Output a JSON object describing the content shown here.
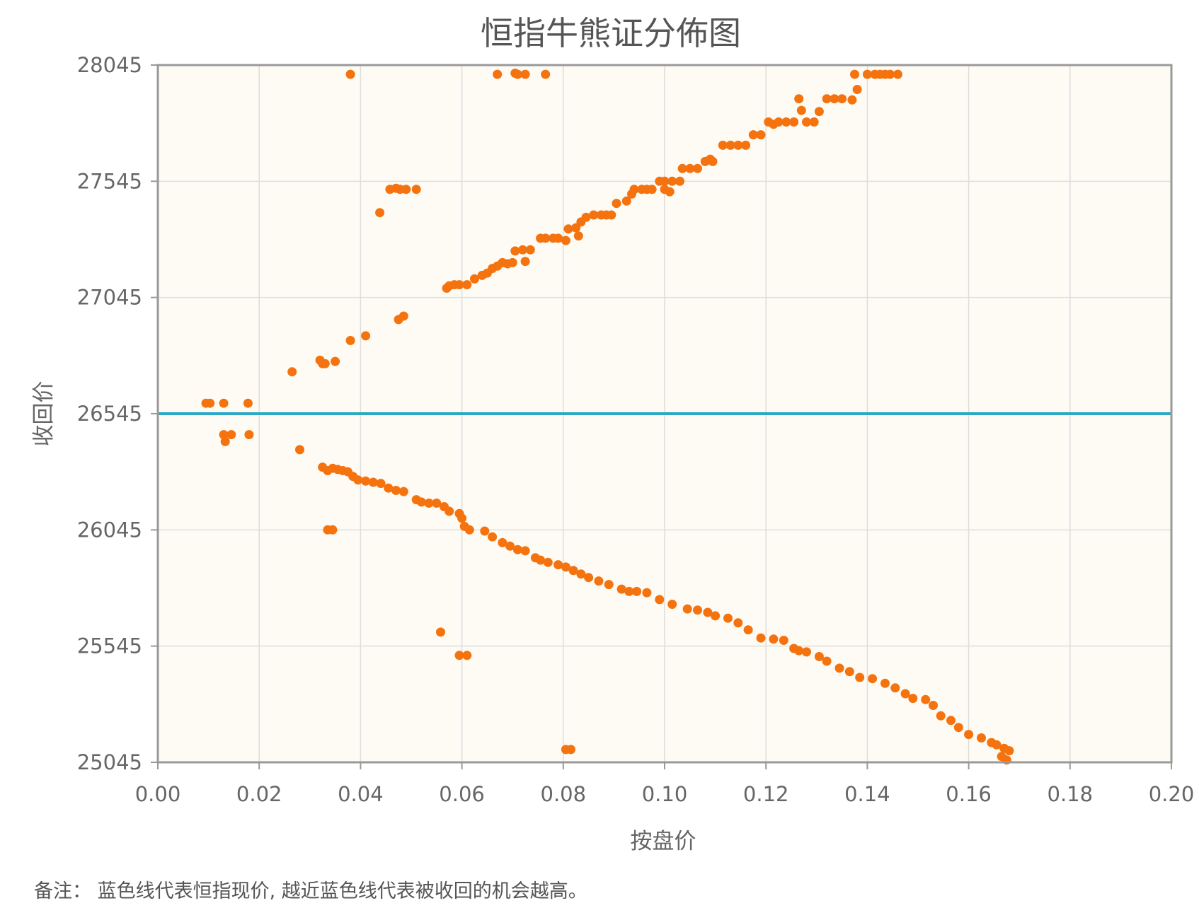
{
  "chart_data": {
    "type": "scatter",
    "title": "恒指牛熊证分佈图",
    "xlabel": "按盘价",
    "ylabel": "收回价",
    "xlim": [
      0,
      0.2
    ],
    "ylim": [
      25045,
      28045
    ],
    "x_ticks": [
      "0.00",
      "0.02",
      "0.04",
      "0.06",
      "0.08",
      "0.10",
      "0.12",
      "0.14",
      "0.16",
      "0.18",
      "0.20"
    ],
    "y_ticks": [
      "25045",
      "25545",
      "26045",
      "26545",
      "27045",
      "27545",
      "28045"
    ],
    "grid": true,
    "reference_line": {
      "y": 26545,
      "color": "#2aa8c4"
    },
    "colors": {
      "points": "#f5730f",
      "plot_background": "#fdfbf4",
      "grid": "#dddddd",
      "frame": "#999999"
    },
    "series": [
      {
        "points": [
          [
            0.0095,
            26590
          ],
          [
            0.0103,
            26590
          ],
          [
            0.013,
            26590
          ],
          [
            0.0178,
            26590
          ],
          [
            0.0265,
            26725
          ],
          [
            0.032,
            26775
          ],
          [
            0.0325,
            26760
          ],
          [
            0.033,
            26760
          ],
          [
            0.035,
            26770
          ],
          [
            0.038,
            26860
          ],
          [
            0.041,
            26880
          ],
          [
            0.0475,
            26950
          ],
          [
            0.0485,
            26965
          ],
          [
            0.0438,
            27410
          ],
          [
            0.0458,
            27510
          ],
          [
            0.047,
            27515
          ],
          [
            0.0478,
            27510
          ],
          [
            0.049,
            27510
          ],
          [
            0.051,
            27510
          ],
          [
            0.038,
            28005
          ],
          [
            0.057,
            27085
          ],
          [
            0.0575,
            27095
          ],
          [
            0.0585,
            27100
          ],
          [
            0.0595,
            27100
          ],
          [
            0.061,
            27100
          ],
          [
            0.0625,
            27125
          ],
          [
            0.064,
            27140
          ],
          [
            0.065,
            27150
          ],
          [
            0.066,
            27170
          ],
          [
            0.067,
            27180
          ],
          [
            0.068,
            27195
          ],
          [
            0.069,
            27190
          ],
          [
            0.07,
            27195
          ],
          [
            0.0705,
            27245
          ],
          [
            0.072,
            27250
          ],
          [
            0.0735,
            27250
          ],
          [
            0.0725,
            27200
          ],
          [
            0.0755,
            27300
          ],
          [
            0.0765,
            27300
          ],
          [
            0.078,
            27300
          ],
          [
            0.079,
            27300
          ],
          [
            0.0805,
            27290
          ],
          [
            0.081,
            27340
          ],
          [
            0.0825,
            27345
          ],
          [
            0.083,
            27310
          ],
          [
            0.0835,
            27370
          ],
          [
            0.0845,
            27390
          ],
          [
            0.086,
            27400
          ],
          [
            0.0875,
            27400
          ],
          [
            0.0885,
            27400
          ],
          [
            0.0895,
            27400
          ],
          [
            0.0905,
            27450
          ],
          [
            0.0925,
            27460
          ],
          [
            0.0935,
            27490
          ],
          [
            0.094,
            27510
          ],
          [
            0.0955,
            27510
          ],
          [
            0.0965,
            27510
          ],
          [
            0.0975,
            27510
          ],
          [
            0.099,
            27545
          ],
          [
            0.1,
            27545
          ],
          [
            0.1015,
            27545
          ],
          [
            0.1,
            27510
          ],
          [
            0.101,
            27500
          ],
          [
            0.103,
            27545
          ],
          [
            0.1035,
            27600
          ],
          [
            0.105,
            27600
          ],
          [
            0.1065,
            27600
          ],
          [
            0.108,
            27630
          ],
          [
            0.109,
            27640
          ],
          [
            0.1095,
            27630
          ],
          [
            0.1115,
            27700
          ],
          [
            0.113,
            27700
          ],
          [
            0.1145,
            27700
          ],
          [
            0.116,
            27700
          ],
          [
            0.1175,
            27745
          ],
          [
            0.119,
            27745
          ],
          [
            0.1205,
            27800
          ],
          [
            0.1215,
            27790
          ],
          [
            0.1225,
            27800
          ],
          [
            0.124,
            27800
          ],
          [
            0.1255,
            27800
          ],
          [
            0.1265,
            27900
          ],
          [
            0.127,
            27850
          ],
          [
            0.128,
            27800
          ],
          [
            0.1295,
            27800
          ],
          [
            0.1305,
            27845
          ],
          [
            0.132,
            27900
          ],
          [
            0.1335,
            27900
          ],
          [
            0.135,
            27900
          ],
          [
            0.137,
            27895
          ],
          [
            0.138,
            27940
          ],
          [
            0.1375,
            28005
          ],
          [
            0.14,
            28005
          ],
          [
            0.1415,
            28005
          ],
          [
            0.1425,
            28005
          ],
          [
            0.1435,
            28005
          ],
          [
            0.1445,
            28005
          ],
          [
            0.146,
            28005
          ],
          [
            0.067,
            28005
          ],
          [
            0.0705,
            28010
          ],
          [
            0.071,
            28005
          ],
          [
            0.0725,
            28005
          ],
          [
            0.0765,
            28005
          ],
          [
            0.013,
            26455
          ],
          [
            0.0133,
            26425
          ],
          [
            0.0145,
            26455
          ],
          [
            0.018,
            26455
          ],
          [
            0.028,
            26390
          ],
          [
            0.0325,
            26315
          ],
          [
            0.0335,
            26300
          ],
          [
            0.0345,
            26310
          ],
          [
            0.0355,
            26305
          ],
          [
            0.0365,
            26300
          ],
          [
            0.0375,
            26295
          ],
          [
            0.0385,
            26275
          ],
          [
            0.0395,
            26260
          ],
          [
            0.041,
            26255
          ],
          [
            0.0425,
            26250
          ],
          [
            0.044,
            26245
          ],
          [
            0.0455,
            26225
          ],
          [
            0.047,
            26215
          ],
          [
            0.0485,
            26210
          ],
          [
            0.051,
            26175
          ],
          [
            0.052,
            26165
          ],
          [
            0.0535,
            26160
          ],
          [
            0.055,
            26160
          ],
          [
            0.0565,
            26145
          ],
          [
            0.0575,
            26125
          ],
          [
            0.0595,
            26115
          ],
          [
            0.06,
            26095
          ],
          [
            0.0605,
            26060
          ],
          [
            0.0615,
            26045
          ],
          [
            0.0645,
            26040
          ],
          [
            0.066,
            26015
          ],
          [
            0.068,
            25990
          ],
          [
            0.0695,
            25975
          ],
          [
            0.071,
            25960
          ],
          [
            0.0725,
            25955
          ],
          [
            0.0745,
            25925
          ],
          [
            0.0755,
            25915
          ],
          [
            0.077,
            25905
          ],
          [
            0.079,
            25895
          ],
          [
            0.0805,
            25885
          ],
          [
            0.082,
            25870
          ],
          [
            0.0835,
            25855
          ],
          [
            0.085,
            25840
          ],
          [
            0.087,
            25825
          ],
          [
            0.089,
            25810
          ],
          [
            0.0915,
            25790
          ],
          [
            0.093,
            25780
          ],
          [
            0.0945,
            25780
          ],
          [
            0.0965,
            25775
          ],
          [
            0.099,
            25745
          ],
          [
            0.1015,
            25725
          ],
          [
            0.1045,
            25705
          ],
          [
            0.1065,
            25700
          ],
          [
            0.1085,
            25690
          ],
          [
            0.11,
            25675
          ],
          [
            0.1125,
            25665
          ],
          [
            0.1145,
            25645
          ],
          [
            0.1165,
            25615
          ],
          [
            0.119,
            25580
          ],
          [
            0.1215,
            25575
          ],
          [
            0.1235,
            25570
          ],
          [
            0.1255,
            25535
          ],
          [
            0.1265,
            25525
          ],
          [
            0.128,
            25520
          ],
          [
            0.1305,
            25500
          ],
          [
            0.132,
            25480
          ],
          [
            0.1345,
            25450
          ],
          [
            0.1365,
            25435
          ],
          [
            0.1385,
            25410
          ],
          [
            0.141,
            25405
          ],
          [
            0.1435,
            25385
          ],
          [
            0.1455,
            25365
          ],
          [
            0.1475,
            25340
          ],
          [
            0.149,
            25320
          ],
          [
            0.1515,
            25315
          ],
          [
            0.153,
            25290
          ],
          [
            0.1545,
            25245
          ],
          [
            0.1565,
            25225
          ],
          [
            0.158,
            25195
          ],
          [
            0.16,
            25165
          ],
          [
            0.1625,
            25150
          ],
          [
            0.1645,
            25130
          ],
          [
            0.1655,
            25120
          ],
          [
            0.167,
            25105
          ],
          [
            0.168,
            25095
          ],
          [
            0.1665,
            25070
          ],
          [
            0.1675,
            25055
          ],
          [
            0.0335,
            26045
          ],
          [
            0.0345,
            26045
          ],
          [
            0.0558,
            25605
          ],
          [
            0.0595,
            25505
          ],
          [
            0.061,
            25505
          ],
          [
            0.0805,
            25100
          ],
          [
            0.0815,
            25100
          ]
        ]
      }
    ]
  },
  "note": "备注： 蓝色线代表恒指现价, 越近蓝色线代表被收回的机会越高。"
}
